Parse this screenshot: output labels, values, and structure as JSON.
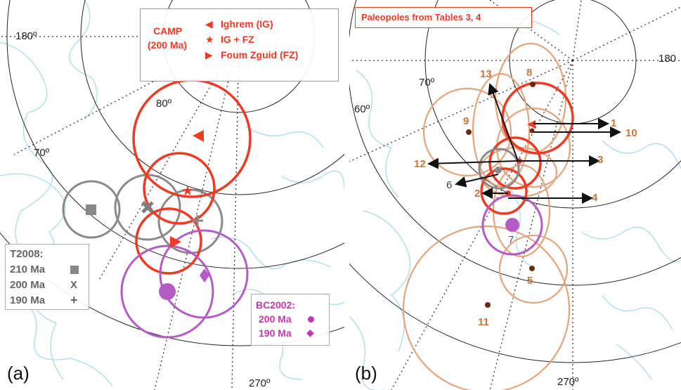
{
  "panel_a": {
    "letter": "(a)",
    "grid_labels": {
      "lon180": "180º",
      "lat80": "80º",
      "lat70": "70º",
      "lon270": "270º"
    },
    "camp_legend": {
      "title_line1": "CAMP",
      "title_line2": "(200 Ma)",
      "entry1": "Ighrem (IG)",
      "entry2": "IG + FZ",
      "entry3": "Foum Zguid (FZ)"
    },
    "t2008_legend": {
      "title": "T2008:",
      "entry1": "210 Ma",
      "entry2": "200 Ma",
      "entry3": "190 Ma",
      "symbol2": "X",
      "symbol3": "+"
    },
    "bc2002_legend": {
      "title": "BC2002:",
      "entry1": "200 Ma",
      "entry2": "190 Ma"
    }
  },
  "panel_b": {
    "letter": "(b)",
    "title": "Paleopoles from Tables 3, 4",
    "grid_labels": {
      "lon180": "180",
      "lat70": "70º",
      "lat60": "60º",
      "lon270": "270º"
    },
    "pole_numbers": [
      "1",
      "2",
      "3",
      "4",
      "5",
      "6",
      "7",
      "8",
      "9",
      "10",
      "11",
      "12",
      "13"
    ]
  },
  "colors": {
    "camp_red": "#ef3b24",
    "t2008_gray": "#8a8a8a",
    "bc2002_purple": "#b25cc4",
    "paleopole_tan": "#e3a57e",
    "coastline": "#a9dcea",
    "grid": "#222222"
  }
}
